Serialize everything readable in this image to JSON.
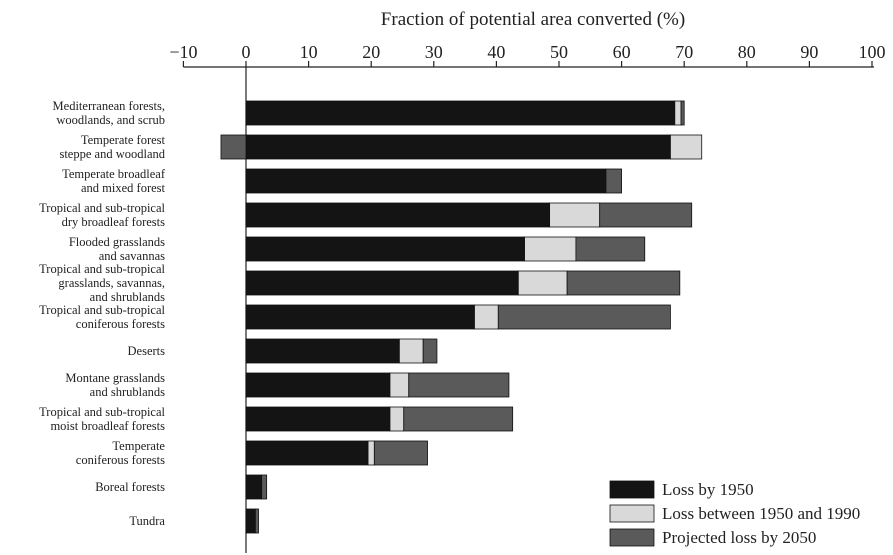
{
  "chart_data": {
    "type": "bar",
    "orientation": "horizontal",
    "stacked": true,
    "xlabel": "Fraction of potential area converted (%)",
    "xlim": [
      -10,
      100
    ],
    "xticks": [
      -10,
      0,
      10,
      20,
      30,
      40,
      50,
      60,
      70,
      80,
      90,
      100
    ],
    "xtick_labels": [
      "−10",
      "0",
      "10",
      "20",
      "30",
      "40",
      "50",
      "60",
      "70",
      "80",
      "90",
      "100"
    ],
    "axis_position": "top",
    "grid": false,
    "legend_position": "bottom-right",
    "categories": [
      [
        "Mediterranean forests,",
        "woodlands, and scrub"
      ],
      [
        "Temperate forest",
        "steppe and woodland"
      ],
      [
        "Temperate broadleaf",
        "and mixed forest"
      ],
      [
        "Tropical and sub-tropical",
        "dry broadleaf forests"
      ],
      [
        "Flooded grasslands",
        "and savannas"
      ],
      [
        "Tropical and sub-tropical",
        "grasslands, savannas,",
        "and shrublands"
      ],
      [
        "Tropical and sub-tropical",
        "coniferous forests"
      ],
      [
        "Deserts"
      ],
      [
        "Montane grasslands",
        "and shrublands"
      ],
      [
        "Tropical and sub-tropical",
        "moist broadleaf forests"
      ],
      [
        "Temperate",
        "coniferous forests"
      ],
      [
        "Boreal forests"
      ],
      [
        "Tundra"
      ]
    ],
    "series": [
      {
        "name": "Loss by 1950",
        "color": "#141414",
        "values": [
          68.5,
          67.8,
          57.5,
          48.5,
          44.5,
          43.5,
          36.5,
          24.5,
          23,
          23,
          19.5,
          2.5,
          1.5
        ]
      },
      {
        "name": "Loss between 1950 and 1990",
        "color": "#d9d9d9",
        "values": [
          1,
          5,
          0,
          8,
          8.2,
          7.8,
          3.8,
          3.8,
          3,
          2.2,
          1,
          0,
          0
        ]
      },
      {
        "name": "Projected loss by 2050",
        "color": "#5a5a5a",
        "values": [
          0.5,
          0,
          2.5,
          14.7,
          11,
          18,
          27.5,
          2.2,
          16,
          17.4,
          8.5,
          0.8,
          0.5
        ],
        "negative_values": [
          0,
          -4,
          0,
          0,
          0,
          0,
          0,
          0,
          0,
          0,
          0,
          0,
          0
        ]
      }
    ]
  }
}
